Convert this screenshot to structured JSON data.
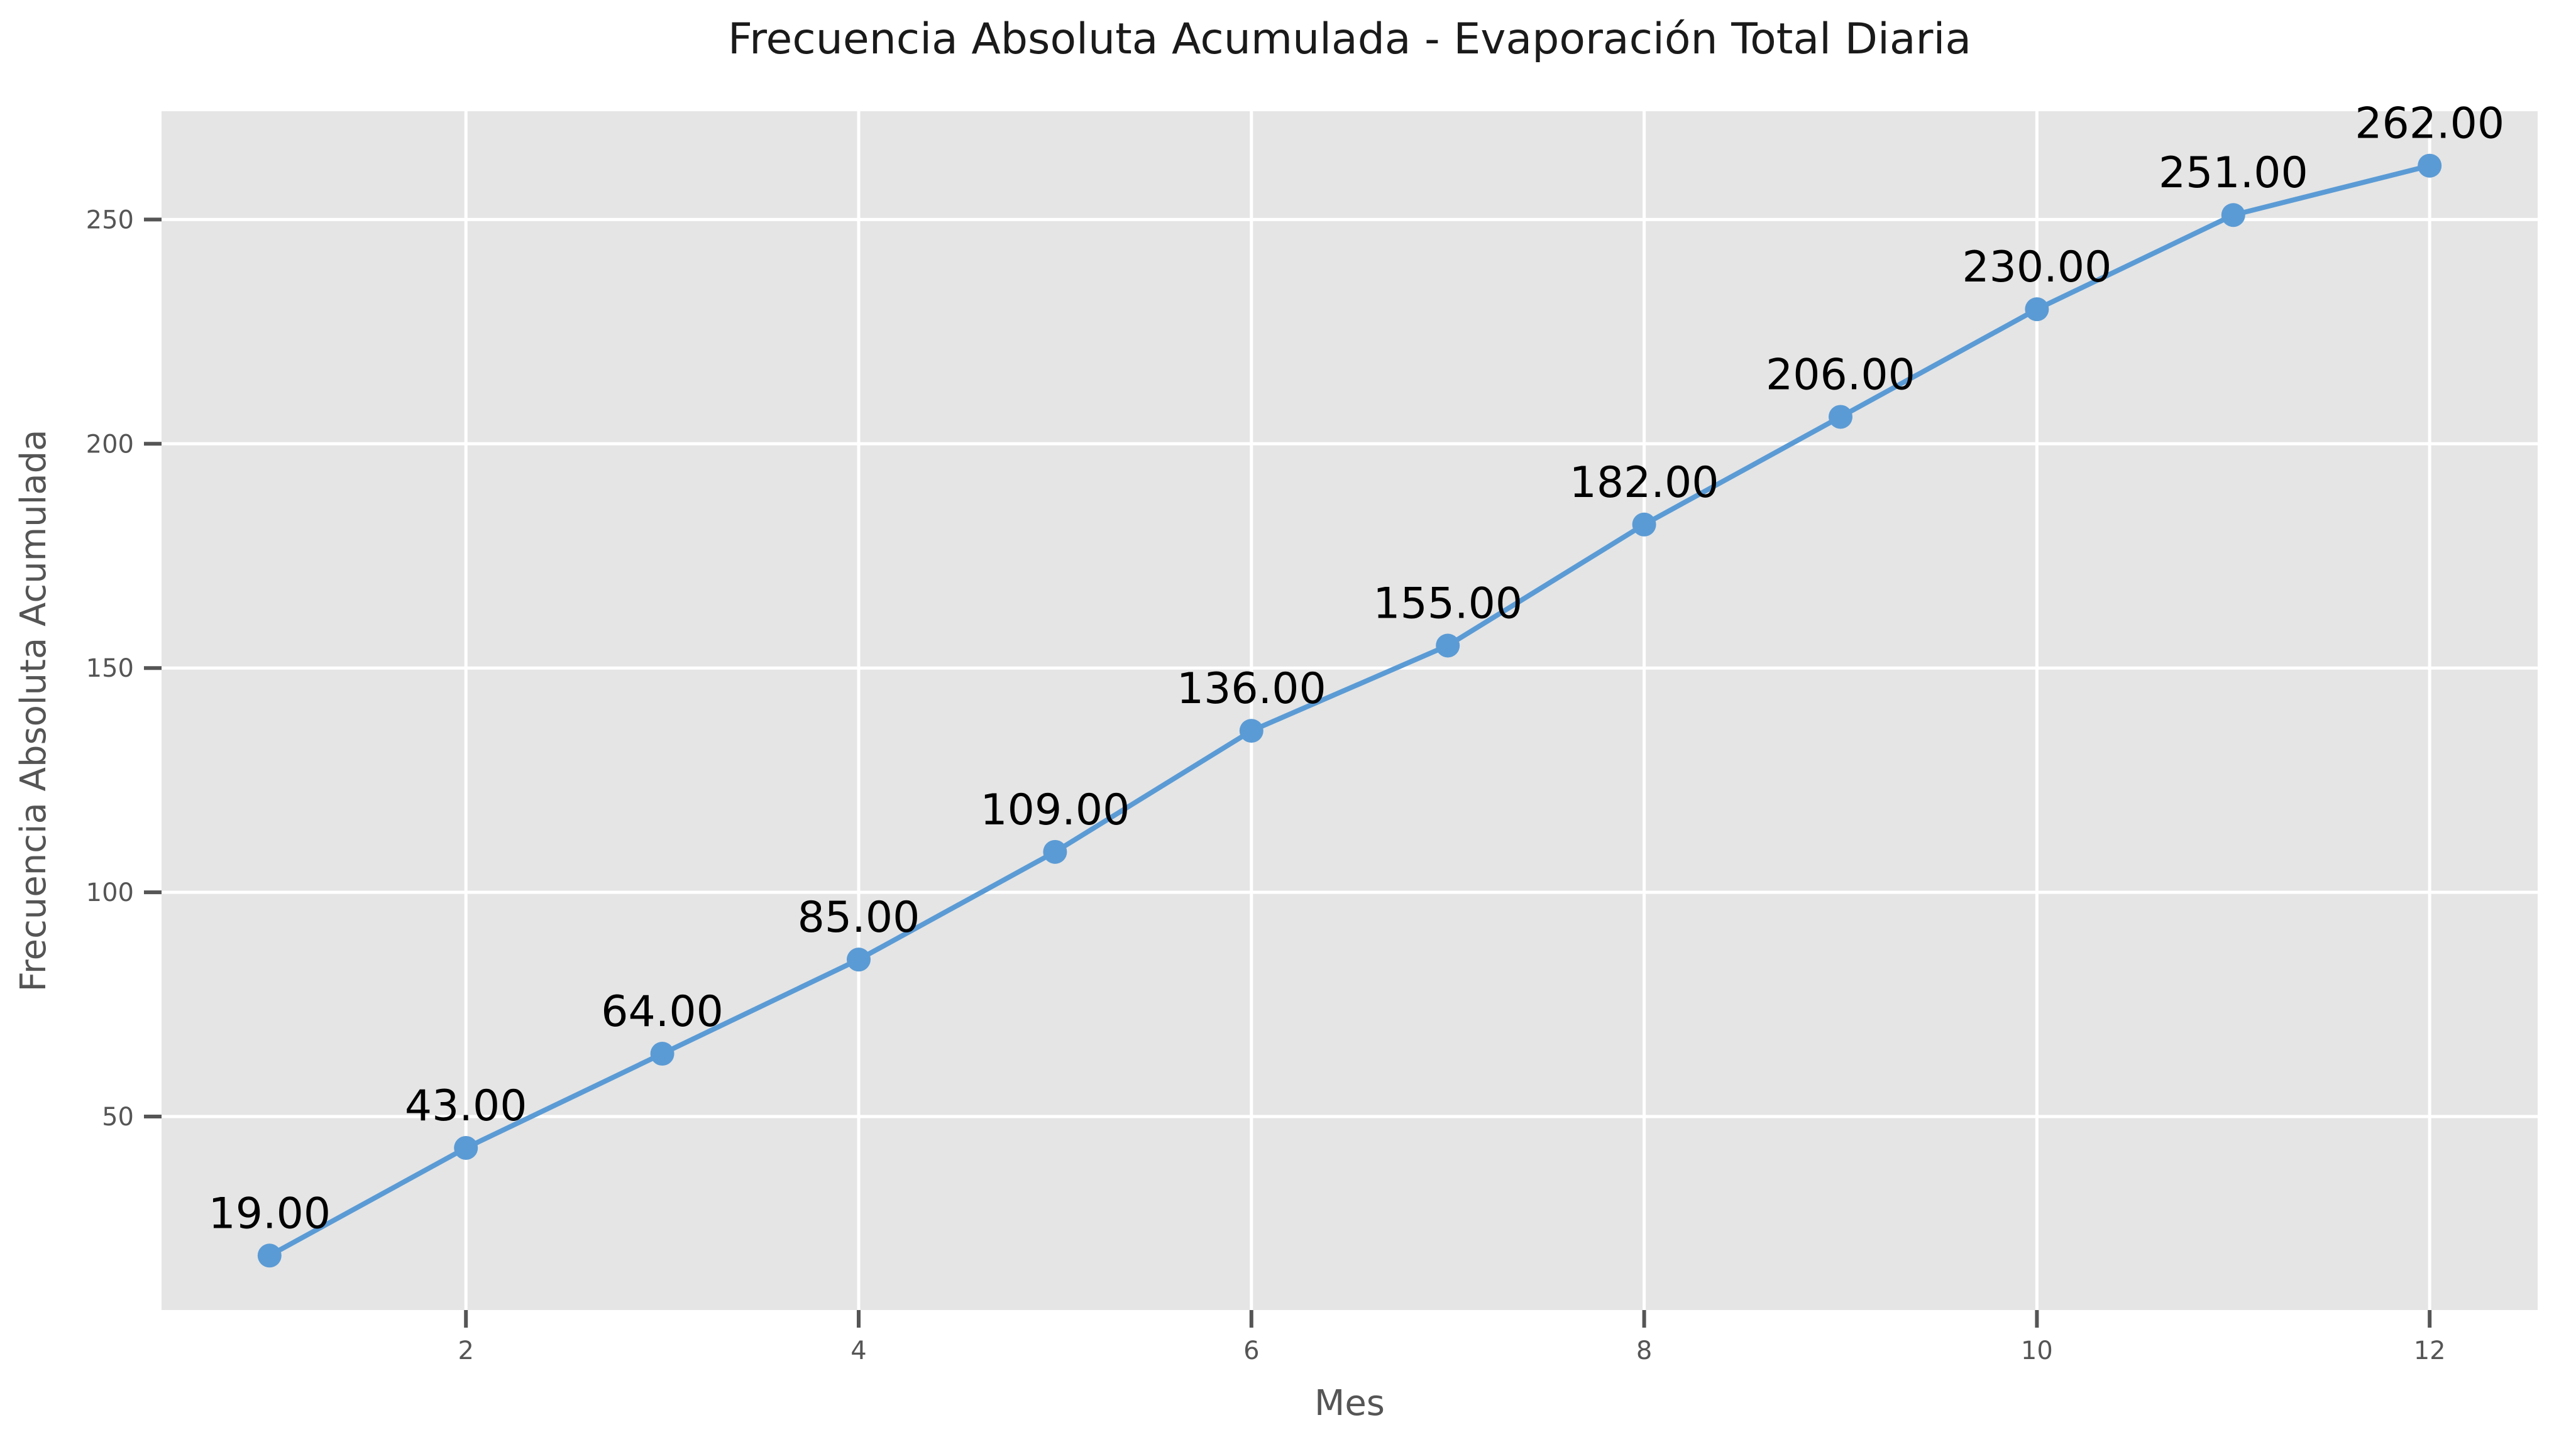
{
  "chart_data": {
    "type": "line",
    "title": "Frecuencia Absoluta Acumulada - Evaporación Total Diaria",
    "xlabel": "Mes",
    "ylabel": "Frecuencia Absoluta Acumulada",
    "x": [
      1,
      2,
      3,
      4,
      5,
      6,
      7,
      8,
      9,
      10,
      11,
      12
    ],
    "series": [
      {
        "values": [
          19,
          43,
          64,
          85,
          109,
          136,
          155,
          182,
          206,
          230,
          251,
          262
        ],
        "point_labels": [
          "19.00",
          "43.00",
          "64.00",
          "85.00",
          "109.00",
          "136.00",
          "155.00",
          "182.00",
          "206.00",
          "230.00",
          "251.00",
          "262.00"
        ],
        "color": "#5b9bd5"
      }
    ],
    "xlim": [
      0.45,
      12.55
    ],
    "ylim": [
      6.85,
      274.15
    ],
    "xticks": [
      2,
      4,
      6,
      8,
      10,
      12
    ],
    "xtick_labels": [
      "2",
      "4",
      "6",
      "8",
      "10",
      "12"
    ],
    "yticks": [
      50,
      100,
      150,
      200,
      250
    ],
    "ytick_labels": [
      "50",
      "100",
      "150",
      "200",
      "250"
    ],
    "grid": true,
    "legend": "none",
    "colors": {
      "plot_background": "#e5e5e5",
      "grid": "#ffffff",
      "line": "#5b9bd5",
      "tick": "#555555"
    }
  }
}
